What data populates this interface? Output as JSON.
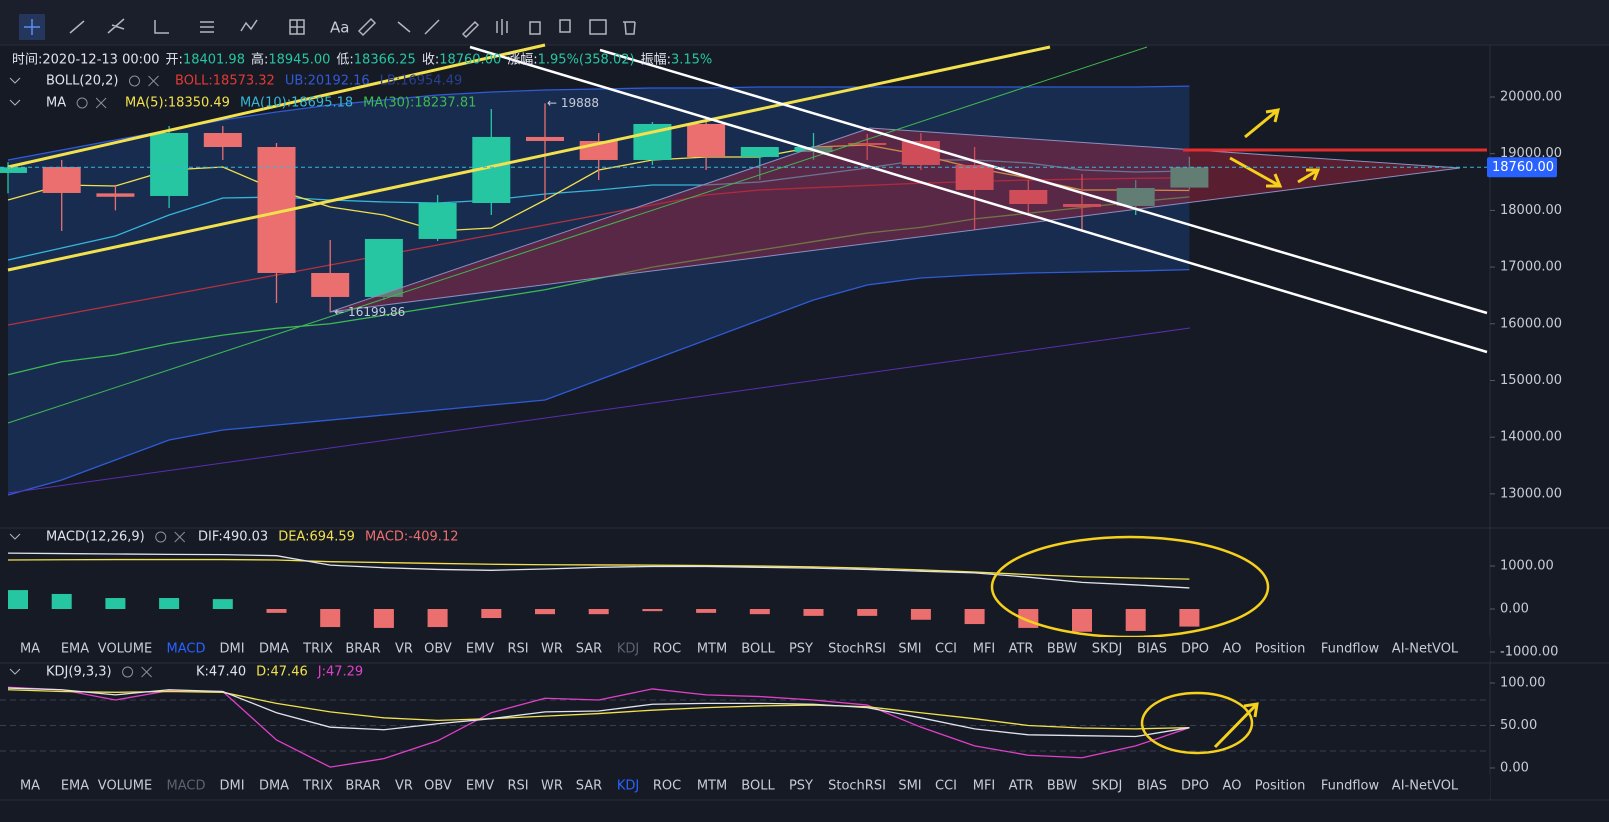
{
  "toolbar": {
    "text_tool": "Aa"
  },
  "info_bar": {
    "items": [
      {
        "label": "时间:",
        "value": "2020-12-13 00:00"
      },
      {
        "label": "开:",
        "value": "18401.98"
      },
      {
        "label": "高:",
        "value": "18945.00"
      },
      {
        "label": "低:",
        "value": "18366.25"
      },
      {
        "label": "收:",
        "value": "18760.00"
      },
      {
        "label": "涨幅:",
        "value": "1.95%(358.02)"
      },
      {
        "label": "振幅:",
        "value": "3.15%"
      }
    ]
  },
  "main": {
    "type": "candlestick",
    "legends": [
      {
        "name": "BOLL(20,2)",
        "items": [
          {
            "text": "BOLL:18573.32",
            "color": "#e53935"
          },
          {
            "text": "UB:20192.16",
            "color": "#2f5bd6"
          },
          {
            "text": "LB:16954.49",
            "color": "#27408f"
          }
        ]
      },
      {
        "name": "MA",
        "items": [
          {
            "text": "MA(5):18350.49",
            "color": "#f2e14c"
          },
          {
            "text": "MA(10):18695.18",
            "color": "#36b6d8"
          },
          {
            "text": "MA(30):18237.81",
            "color": "#3fb950"
          }
        ]
      }
    ],
    "candles": {
      "open": [
        18660,
        18765,
        18300,
        18254,
        19365,
        19118,
        16896,
        16473,
        17496,
        18130,
        19295,
        19224,
        18889,
        19524,
        18942,
        19030,
        19189,
        19224,
        18801,
        18360,
        18113,
        18078,
        18401.98
      ],
      "high": [
        18850,
        18889,
        18450,
        19488,
        19488,
        19189,
        17478,
        17496,
        18271,
        19788,
        19888,
        19365,
        19559,
        19630,
        19065,
        19365,
        19347,
        19365,
        19118,
        18536,
        18642,
        18536,
        18945
      ],
      "low": [
        18300,
        17637,
        18000,
        18042,
        18889,
        16367,
        16199.86,
        16420,
        17460,
        17919,
        18183,
        18536,
        18801,
        18712,
        18536,
        18889,
        18889,
        18712,
        17654,
        17919,
        17637,
        17919,
        18366.25
      ],
      "close": [
        18760,
        18307,
        18240,
        19365,
        19118,
        16896,
        16473,
        17496,
        18130,
        19295,
        19224,
        18889,
        19524,
        18942,
        19118,
        19118,
        19153,
        18801,
        18360,
        18113,
        18060,
        18395,
        18760
      ]
    },
    "lines": [
      {
        "key": "boll_upper",
        "color": "#2f5bd6",
        "values": [
          18889,
          19065,
          19241,
          19418,
          19594,
          19735,
          19859,
          19947,
          20035,
          20088,
          20123,
          20141,
          20159,
          20159,
          20176,
          20176,
          20176,
          20176,
          20176,
          20176,
          20176,
          20176,
          20192.16
        ]
      },
      {
        "key": "boll_lower",
        "color": "#2f5bd6",
        "values": [
          12979,
          13244,
          13597,
          13950,
          14126,
          14214,
          14302,
          14391,
          14479,
          14567,
          14655,
          15008,
          15361,
          15713,
          16066,
          16419,
          16684,
          16807,
          16860,
          16895,
          16913,
          16931,
          16954.49
        ]
      },
      {
        "key": "boll_mid",
        "color": "#b5313e",
        "values": [
          15978,
          16154,
          16331,
          16507,
          16684,
          16860,
          17037,
          17213,
          17389,
          17566,
          17742,
          17918,
          18095,
          18271,
          18359,
          18400,
          18440,
          18480,
          18510,
          18535,
          18550,
          18565,
          18573.32
        ]
      },
      {
        "key": "ma30",
        "color": "#3fb950",
        "values": [
          15100,
          15330,
          15450,
          15650,
          15800,
          15920,
          16000,
          16150,
          16300,
          16450,
          16600,
          16800,
          17000,
          17150,
          17300,
          17450,
          17600,
          17700,
          17850,
          17950,
          18050,
          18150,
          18237.81
        ]
      },
      {
        "key": "ma10",
        "color": "#36b6d8",
        "values": [
          17125,
          17336,
          17548,
          17918,
          18218,
          18236,
          18183,
          18148,
          18130,
          18183,
          18289,
          18359,
          18448,
          18448,
          18501,
          18624,
          18748,
          18889,
          18889,
          18836,
          18712,
          18677,
          18695.18
        ]
      },
      {
        "key": "ma5",
        "color": "#f2e14c",
        "values": [
          18183,
          18448,
          18430,
          18712,
          18765,
          18359,
          18060,
          17918,
          17636,
          17689,
          18183,
          18712,
          18889,
          18942,
          18942,
          19118,
          19153,
          18977,
          18748,
          18571,
          18359,
          18359,
          18350.49
        ]
      }
    ],
    "up_color": "#26c6a2",
    "down_color": "#eb6f6f",
    "ylim": [
      12398,
      20917
    ],
    "yticks": [
      {
        "value": 20000,
        "label": "20000.00"
      },
      {
        "value": 19000,
        "label": "19000.00"
      },
      {
        "value": 18000,
        "label": "18000.00"
      },
      {
        "value": 17000,
        "label": "17000.00"
      },
      {
        "value": 16000,
        "label": "16000.00"
      },
      {
        "value": 15000,
        "label": "15000.00"
      },
      {
        "value": 14000,
        "label": "14000.00"
      },
      {
        "value": 13000,
        "label": "13000.00"
      }
    ],
    "last_price": {
      "value": 18760,
      "label": "18760.00"
    },
    "annotations": [
      {
        "text": "← 16199.86"
      },
      {
        "text": "← 19888"
      }
    ]
  },
  "macd": {
    "legend": {
      "name": "MACD(12,26,9)",
      "items": [
        {
          "text": "DIF:490.03",
          "color": "#e0e3eb"
        },
        {
          "text": "DEA:694.59",
          "color": "#f2e14c"
        },
        {
          "text": "MACD:-409.12",
          "color": "#eb6f6f"
        }
      ]
    },
    "histogram": [
      440,
      350,
      255,
      255,
      230,
      -90,
      -420,
      -440,
      -420,
      -210,
      -120,
      -120,
      -50,
      -90,
      -120,
      -160,
      -160,
      -250,
      -350,
      -440,
      -530,
      -510,
      -409.12
    ],
    "dif": [
      1300,
      1290,
      1280,
      1270,
      1265,
      1240,
      1020,
      960,
      920,
      900,
      930,
      970,
      990,
      990,
      970,
      950,
      920,
      880,
      840,
      740,
      620,
      560,
      490.03
    ],
    "dea": [
      1140,
      1145,
      1150,
      1150,
      1150,
      1140,
      1100,
      1080,
      1060,
      1040,
      1030,
      1025,
      1020,
      1010,
      1000,
      980,
      950,
      910,
      860,
      800,
      750,
      720,
      694.59
    ],
    "dif_color": "#e0e3eb",
    "dea_color": "#f2e14c",
    "ylim": [
      -1256,
      1884
    ],
    "yticks": [
      {
        "value": 1000,
        "label": "1000.00"
      },
      {
        "value": 0,
        "label": "0.00"
      },
      {
        "value": -1000,
        "label": "-1000.00"
      }
    ]
  },
  "kdj": {
    "legend": {
      "name": "KDJ(9,3,3)",
      "items": [
        {
          "text": "K:47.40",
          "color": "#e0e3eb"
        },
        {
          "text": "D:47.46",
          "color": "#f2e14c"
        },
        {
          "text": "J:47.29",
          "color": "#e040c8"
        }
      ]
    },
    "k": [
      94,
      92,
      86,
      92,
      90,
      65,
      48,
      45,
      52,
      58,
      66,
      67,
      75,
      76,
      76,
      75,
      71,
      59,
      46,
      39,
      38,
      37,
      47.4
    ],
    "d": [
      92,
      90,
      89,
      90,
      89,
      76,
      66,
      59,
      56,
      58,
      61,
      64,
      68,
      71,
      73,
      74,
      72,
      65,
      58,
      50,
      47,
      46,
      47.46
    ],
    "j": [
      95,
      92,
      80,
      91,
      90,
      33,
      1,
      11,
      32,
      65,
      82,
      80,
      93,
      86,
      84,
      80,
      74,
      48,
      26,
      15,
      12,
      26,
      47.29
    ],
    "k_color": "#e0e3eb",
    "d_color": "#f2e14c",
    "j_color": "#e040c8",
    "reference_lines": [
      80,
      50,
      20
    ],
    "ylim": [
      -11.8,
      123.5
    ],
    "yticks": [
      {
        "value": 100,
        "label": "100.00"
      },
      {
        "value": 50,
        "label": "50.00"
      },
      {
        "value": 0,
        "label": "0.00"
      }
    ]
  },
  "tabs": [
    "MA",
    "EMA",
    "VOLUME",
    "MACD",
    "DMI",
    "DMA",
    "TRIX",
    "BRAR",
    "VR",
    "OBV",
    "EMV",
    "RSI",
    "WR",
    "SAR",
    "KDJ",
    "ROC",
    "MTM",
    "BOLL",
    "PSY",
    "StochRSI",
    "SMI",
    "CCI",
    "MFI",
    "ATR",
    "BBW",
    "SKDJ",
    "BIAS",
    "DPO",
    "AO",
    "Position",
    "Fundflow",
    "AI-NetVOL"
  ]
}
